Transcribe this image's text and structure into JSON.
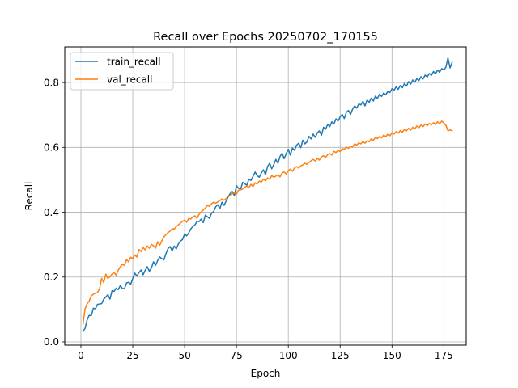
{
  "chart_data": {
    "type": "line",
    "title": "Recall over Epochs 20250702_170155",
    "xlabel": "Epoch",
    "ylabel": "Recall",
    "xlim": [
      -7.8,
      185.8
    ],
    "ylim": [
      -0.01,
      0.91
    ],
    "xticks": [
      0,
      25,
      50,
      75,
      100,
      125,
      150,
      175
    ],
    "yticks": [
      0.0,
      0.2,
      0.4,
      0.6,
      0.8
    ],
    "ytick_labels": [
      "0.0",
      "0.2",
      "0.4",
      "0.6",
      "0.8"
    ],
    "grid": true,
    "legend_position": "upper left",
    "series": [
      {
        "name": "train_recall",
        "color": "#1f77b4",
        "x_start": 1,
        "values": [
          0.032,
          0.042,
          0.068,
          0.082,
          0.081,
          0.104,
          0.102,
          0.116,
          0.117,
          0.118,
          0.132,
          0.138,
          0.146,
          0.132,
          0.158,
          0.156,
          0.166,
          0.161,
          0.174,
          0.165,
          0.164,
          0.182,
          0.184,
          0.178,
          0.196,
          0.212,
          0.203,
          0.214,
          0.222,
          0.207,
          0.221,
          0.232,
          0.218,
          0.228,
          0.247,
          0.236,
          0.251,
          0.262,
          0.257,
          0.253,
          0.272,
          0.288,
          0.294,
          0.281,
          0.296,
          0.287,
          0.302,
          0.311,
          0.316,
          0.333,
          0.327,
          0.336,
          0.349,
          0.356,
          0.361,
          0.372,
          0.371,
          0.379,
          0.368,
          0.391,
          0.386,
          0.381,
          0.397,
          0.402,
          0.417,
          0.423,
          0.411,
          0.431,
          0.421,
          0.434,
          0.447,
          0.458,
          0.464,
          0.451,
          0.482,
          0.474,
          0.471,
          0.492,
          0.488,
          0.483,
          0.502,
          0.498,
          0.511,
          0.524,
          0.513,
          0.508,
          0.521,
          0.531,
          0.516,
          0.541,
          0.551,
          0.534,
          0.547,
          0.563,
          0.551,
          0.572,
          0.582,
          0.565,
          0.581,
          0.594,
          0.576,
          0.598,
          0.591,
          0.607,
          0.613,
          0.599,
          0.622,
          0.611,
          0.617,
          0.634,
          0.626,
          0.641,
          0.631,
          0.645,
          0.651,
          0.637,
          0.662,
          0.656,
          0.671,
          0.664,
          0.679,
          0.672,
          0.688,
          0.681,
          0.694,
          0.702,
          0.689,
          0.708,
          0.714,
          0.702,
          0.718,
          0.728,
          0.721,
          0.734,
          0.731,
          0.742,
          0.728,
          0.746,
          0.739,
          0.752,
          0.743,
          0.758,
          0.751,
          0.764,
          0.757,
          0.768,
          0.762,
          0.773,
          0.769,
          0.781,
          0.776,
          0.787,
          0.779,
          0.791,
          0.784,
          0.797,
          0.789,
          0.803,
          0.795,
          0.808,
          0.801,
          0.812,
          0.806,
          0.818,
          0.811,
          0.823,
          0.817,
          0.828,
          0.822,
          0.834,
          0.827,
          0.838,
          0.832,
          0.843,
          0.839,
          0.847,
          0.876,
          0.845,
          0.862
        ]
      },
      {
        "name": "val_recall",
        "color": "#ff7f0e",
        "x_start": 1,
        "values": [
          0.055,
          0.102,
          0.118,
          0.126,
          0.142,
          0.147,
          0.151,
          0.152,
          0.164,
          0.196,
          0.183,
          0.209,
          0.196,
          0.201,
          0.209,
          0.214,
          0.206,
          0.221,
          0.232,
          0.239,
          0.236,
          0.254,
          0.247,
          0.261,
          0.257,
          0.268,
          0.262,
          0.285,
          0.279,
          0.291,
          0.284,
          0.296,
          0.289,
          0.301,
          0.296,
          0.289,
          0.309,
          0.298,
          0.311,
          0.324,
          0.331,
          0.337,
          0.342,
          0.349,
          0.348,
          0.356,
          0.361,
          0.367,
          0.372,
          0.376,
          0.369,
          0.381,
          0.379,
          0.386,
          0.389,
          0.381,
          0.394,
          0.401,
          0.407,
          0.413,
          0.421,
          0.418,
          0.426,
          0.431,
          0.428,
          0.432,
          0.436,
          0.441,
          0.437,
          0.442,
          0.449,
          0.451,
          0.457,
          0.461,
          0.456,
          0.468,
          0.469,
          0.472,
          0.477,
          0.481,
          0.476,
          0.486,
          0.479,
          0.491,
          0.487,
          0.496,
          0.493,
          0.502,
          0.497,
          0.506,
          0.501,
          0.513,
          0.508,
          0.511,
          0.516,
          0.509,
          0.521,
          0.524,
          0.518,
          0.528,
          0.533,
          0.526,
          0.537,
          0.541,
          0.536,
          0.543,
          0.546,
          0.551,
          0.548,
          0.554,
          0.559,
          0.563,
          0.558,
          0.566,
          0.561,
          0.571,
          0.574,
          0.569,
          0.578,
          0.581,
          0.576,
          0.588,
          0.584,
          0.591,
          0.587,
          0.596,
          0.594,
          0.601,
          0.597,
          0.604,
          0.601,
          0.611,
          0.607,
          0.614,
          0.611,
          0.618,
          0.613,
          0.621,
          0.617,
          0.626,
          0.622,
          0.631,
          0.627,
          0.634,
          0.629,
          0.638,
          0.633,
          0.641,
          0.636,
          0.645,
          0.641,
          0.649,
          0.644,
          0.652,
          0.647,
          0.656,
          0.651,
          0.659,
          0.653,
          0.662,
          0.657,
          0.666,
          0.661,
          0.669,
          0.664,
          0.672,
          0.667,
          0.674,
          0.669,
          0.676,
          0.671,
          0.679,
          0.673,
          0.681,
          0.675,
          0.668,
          0.651,
          0.654,
          0.651
        ]
      }
    ]
  }
}
